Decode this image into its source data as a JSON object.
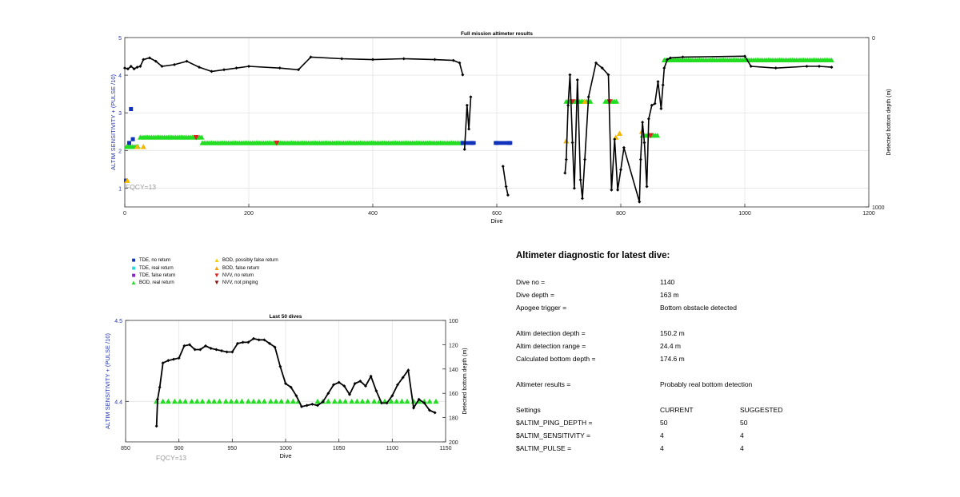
{
  "chart_data": [
    {
      "type": "scatter",
      "title": "Full mission altimeter results",
      "xlabel": "Dive",
      "ylabel": "ALTIM SENSITIVITY + (PULSE /10)",
      "y2label": "Detected bottom depth (m)",
      "xlim": [
        0,
        1200
      ],
      "ylim": [
        0.5,
        5
      ],
      "y2lim": [
        0,
        1000
      ],
      "y2_reversed": true,
      "xticks": [
        0,
        200,
        400,
        600,
        800,
        1000,
        1200
      ],
      "yticks": [
        1,
        2,
        3,
        4,
        5
      ],
      "y2ticks": [
        0,
        1000
      ],
      "grid": true,
      "annotation": "FQCY=13",
      "series": [
        {
          "name": "BOD, real return",
          "color": "#22dd22",
          "marker": "triangle-up",
          "segments": [
            {
              "x": [
                3,
                22
              ],
              "y": 2.1
            },
            {
              "x": [
                25,
                125
              ],
              "y": 2.35
            },
            {
              "x": [
                125,
                545
              ],
              "y": 2.2
            },
            {
              "x": [
                712,
                752
              ],
              "y": 3.3
            },
            {
              "x": [
                775,
                795
              ],
              "y": 3.3
            },
            {
              "x": [
                835,
                860
              ],
              "y": 2.4
            },
            {
              "x": [
                870,
                1140
              ],
              "y": 4.4
            }
          ]
        },
        {
          "name": "TDE, no return",
          "color": "#1133bb",
          "marker": "square",
          "points": [
            [
              2,
              1.2
            ],
            [
              7,
              2.2
            ],
            [
              10,
              3.1
            ],
            [
              13,
              2.3
            ],
            [
              545,
              2.2
            ],
            [
              560,
              2.2
            ],
            [
              600,
              2.2
            ],
            [
              620,
              2.2
            ]
          ],
          "segments": [
            {
              "x": [
                548,
                565
              ],
              "y": 2.2
            },
            {
              "x": [
                598,
                622
              ],
              "y": 2.2
            }
          ]
        },
        {
          "name": "BOD, false return",
          "color": "#f5b800",
          "marker": "triangle-up",
          "points": [
            [
              4,
              1.2
            ],
            [
              20,
              2.1
            ],
            [
              30,
              2.1
            ],
            [
              712,
              2.25
            ],
            [
              742,
              3.3
            ],
            [
              792,
              2.35
            ],
            [
              798,
              2.45
            ],
            [
              834,
              2.5
            ]
          ]
        },
        {
          "name": "NVV, no return",
          "color": "#dd2222",
          "marker": "triangle-down",
          "points": [
            [
              115,
              2.35
            ],
            [
              245,
              2.2
            ],
            [
              722,
              3.3
            ],
            [
              782,
              3.3
            ],
            [
              848,
              2.4
            ]
          ]
        }
      ],
      "depth_profile": {
        "name": "Detected bottom depth",
        "x": [
          0,
          5,
          10,
          15,
          20,
          25,
          30,
          40,
          50,
          60,
          80,
          100,
          120,
          140,
          160,
          180,
          200,
          250,
          280,
          300,
          350,
          400,
          450,
          500,
          530,
          540,
          545,
          548,
          552,
          555,
          558,
          610,
          615,
          618,
          710,
          712,
          715,
          718,
          722,
          725,
          730,
          735,
          738,
          742,
          748,
          760,
          770,
          780,
          785,
          790,
          795,
          800,
          805,
          830,
          832,
          835,
          838,
          842,
          845,
          850,
          855,
          860,
          865,
          868,
          870,
          875,
          880,
          900,
          1000,
          1010,
          1050,
          1100,
          1120,
          1140
        ],
        "y": [
          180,
          185,
          170,
          185,
          175,
          170,
          130,
          120,
          140,
          170,
          160,
          140,
          175,
          200,
          190,
          180,
          170,
          180,
          190,
          115,
          125,
          130,
          125,
          130,
          135,
          150,
          220,
          660,
          400,
          540,
          350,
          760,
          880,
          930,
          800,
          720,
          400,
          220,
          620,
          890,
          250,
          840,
          950,
          720,
          350,
          150,
          180,
          220,
          900,
          600,
          900,
          780,
          650,
          970,
          720,
          500,
          620,
          880,
          480,
          400,
          390,
          260,
          420,
          280,
          180,
          130,
          120,
          115,
          110,
          170,
          180,
          170,
          170,
          175
        ]
      }
    },
    {
      "type": "line",
      "title": "Last 50 dives",
      "xlabel": "Dive",
      "ylabel": "ALTIM SENSITIVITY + (PULSE /10)",
      "y2label": "Detected bottom depth (m)",
      "xlim": [
        850,
        1150
      ],
      "ylim": [
        4.35,
        4.5
      ],
      "y2lim": [
        100,
        200
      ],
      "y2_reversed": true,
      "xticks": [
        850,
        900,
        950,
        1000,
        1050,
        1100,
        1150
      ],
      "yticks": [
        4.4,
        4.5
      ],
      "y2ticks": [
        100,
        120,
        140,
        160,
        180,
        200
      ],
      "grid": true,
      "annotation": "FQCY=13",
      "triangle_dives": [
        879,
        885,
        890,
        896,
        901,
        906,
        912,
        917,
        922,
        928,
        933,
        938,
        944,
        949,
        954,
        959,
        965,
        970,
        975,
        980,
        986,
        991,
        996,
        1002,
        1007,
        1012,
        1030,
        1035,
        1040,
        1046,
        1051,
        1056,
        1062,
        1067,
        1072,
        1077,
        1083,
        1088,
        1093,
        1099,
        1104,
        1109,
        1114,
        1120,
        1125,
        1130,
        1135,
        1141
      ],
      "triangle_y": 4.4,
      "depth_x": [
        879,
        880,
        882,
        885,
        890,
        895,
        900,
        905,
        910,
        915,
        920,
        925,
        930,
        935,
        940,
        945,
        950,
        955,
        960,
        965,
        970,
        975,
        980,
        985,
        990,
        995,
        1000,
        1005,
        1010,
        1015,
        1020,
        1025,
        1030,
        1035,
        1040,
        1045,
        1050,
        1055,
        1060,
        1065,
        1070,
        1075,
        1080,
        1085,
        1090,
        1095,
        1100,
        1105,
        1110,
        1115,
        1120,
        1125,
        1130,
        1135,
        1140
      ],
      "depth_y": [
        187,
        165,
        155,
        135,
        133,
        132,
        131,
        121,
        120,
        124,
        124,
        121,
        123,
        124,
        125,
        126,
        126,
        119,
        118,
        118,
        115,
        116,
        116,
        119,
        122,
        138,
        152,
        155,
        162,
        171,
        170,
        169,
        170,
        167,
        160,
        153,
        151,
        154,
        161,
        152,
        150,
        154,
        146,
        158,
        168,
        168,
        162,
        153,
        147,
        141,
        172,
        165,
        168,
        174,
        176
      ]
    }
  ],
  "legend": [
    {
      "label": "TDE, no return",
      "symbol": "■",
      "color": "#1133bb"
    },
    {
      "label": "TDE, real return",
      "symbol": "■",
      "color": "#22dddd"
    },
    {
      "label": "TDE, false return",
      "symbol": "■",
      "color": "#8822cc"
    },
    {
      "label": "BOD, real return",
      "symbol": "▲",
      "color": "#22dd22"
    },
    {
      "label": "BOD, possibly false return",
      "symbol": "▲",
      "color": "#f5d000"
    },
    {
      "label": "BOD, false return",
      "symbol": "▲",
      "color": "#f5a000"
    },
    {
      "label": "NVV, no return",
      "symbol": "▼",
      "color": "#dd2222"
    },
    {
      "label": "NVV, not pinging",
      "symbol": "▼",
      "color": "#881111"
    }
  ],
  "diagnostic": {
    "title": "Altimeter diagnostic for latest dive:",
    "dive_no": {
      "label": "Dive no =",
      "value": "1140"
    },
    "dive_depth": {
      "label": "Dive depth =",
      "value": "163 m"
    },
    "apogee": {
      "label": "Apogee trigger =",
      "value": "Bottom obstacle detected"
    },
    "det_depth": {
      "label": "Altim detection depth =",
      "value": "150.2 m"
    },
    "det_range": {
      "label": "Altim detection range =",
      "value": "24.4 m"
    },
    "calc_depth": {
      "label": "Calculated bottom depth =",
      "value": "174.6 m"
    },
    "results": {
      "label": "Altimeter results =",
      "value": "Probably real bottom detection"
    },
    "settings": {
      "label": "Settings",
      "current": "CURRENT",
      "suggested": "SUGGESTED"
    },
    "ping_depth": {
      "label": "$ALTIM_PING_DEPTH =",
      "current": "50",
      "suggested": "50"
    },
    "sensitivity": {
      "label": "$ALTIM_SENSITIVITY =",
      "current": "4",
      "suggested": "4"
    },
    "pulse": {
      "label": "$ALTIM_PULSE =",
      "current": "4",
      "suggested": "4"
    }
  }
}
